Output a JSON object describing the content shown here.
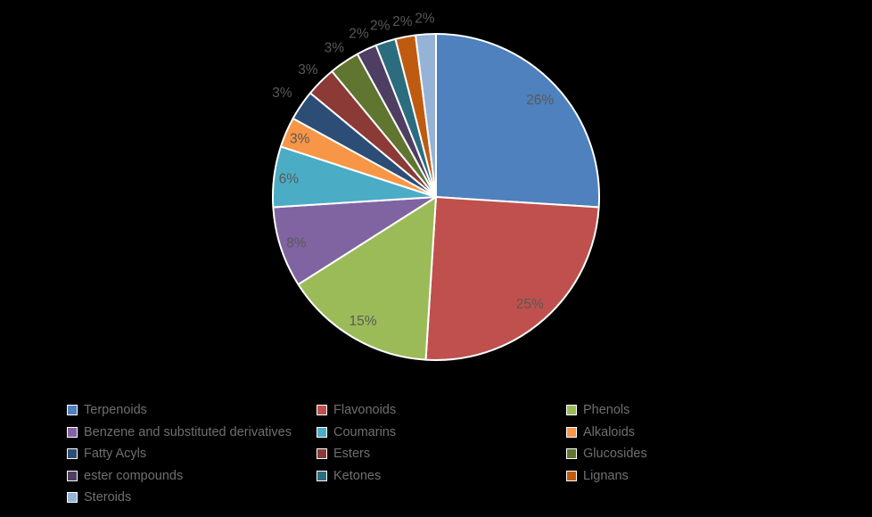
{
  "page": {
    "background": "#000000"
  },
  "chart_data": {
    "type": "pie",
    "title": "",
    "start_angle": "top",
    "direction": "clockwise",
    "total": 100,
    "slice_stroke": "#ffffff",
    "percent_label_color": "#595959",
    "slices": [
      {
        "label": "Terpenoids",
        "value": 26,
        "pct_label": "26%",
        "color": "#4e81bd",
        "label_r": 0.875
      },
      {
        "label": "Flavonoids",
        "value": 25,
        "pct_label": "25%",
        "color": "#c0504d",
        "label_r": 0.87
      },
      {
        "label": "Phenols",
        "value": 15,
        "pct_label": "15%",
        "color": "#9bbb59",
        "label_r": 0.88
      },
      {
        "label": "Benzene and substituted derivatives",
        "value": 8,
        "pct_label": "8%",
        "color": "#8064a2",
        "label_r": 0.9
      },
      {
        "label": "Coumarins",
        "value": 6,
        "pct_label": "6%",
        "color": "#4bacc6",
        "label_r": 0.91
      },
      {
        "label": "Alkaloids",
        "value": 3,
        "pct_label": "3%",
        "color": "#f79646",
        "label_r": 0.91
      },
      {
        "label": "Fatty Acyls",
        "value": 3,
        "pct_label": "3%",
        "color": "#2c4d75",
        "label_r": 1.14
      },
      {
        "label": "Esters",
        "value": 3,
        "pct_label": "3%",
        "color": "#8c3a36",
        "label_r": 1.11
      },
      {
        "label": "Glucosides",
        "value": 3,
        "pct_label": "3%",
        "color": "#5f7530",
        "label_r": 1.11
      },
      {
        "label": "ester compounds",
        "value": 2,
        "pct_label": "2%",
        "color": "#4e3e62",
        "label_r": 1.11
      },
      {
        "label": "Ketones",
        "value": 2,
        "pct_label": "2%",
        "color": "#2c6c7f",
        "label_r": 1.11
      },
      {
        "label": "Lignans",
        "value": 2,
        "pct_label": "2%",
        "color": "#bf5b10",
        "label_r": 1.1
      },
      {
        "label": "Steroids",
        "value": 2,
        "pct_label": "2%",
        "color": "#95b3d7",
        "label_r": 1.1
      }
    ],
    "legend": {
      "position": "bottom",
      "columns": 3,
      "text_color": "#6f6f6f",
      "swatch_border": "#ffffff"
    }
  }
}
